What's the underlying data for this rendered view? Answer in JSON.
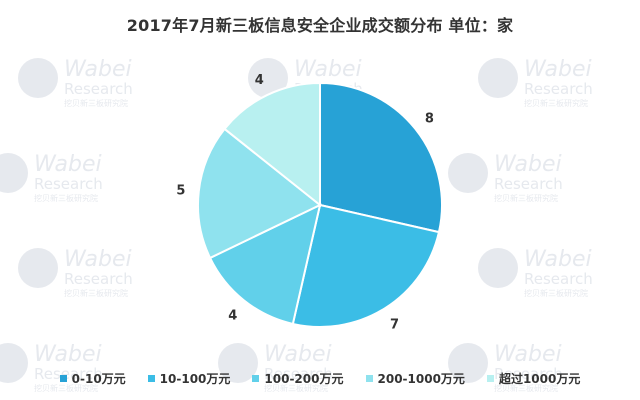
{
  "chart_data": {
    "type": "pie",
    "title": "2017年7月新三板信息安全企业成交额分布   单位：家",
    "categories": [
      "0-10万元",
      "10-100万元",
      "100-200万元",
      "200-1000万元",
      "超过1000万元"
    ],
    "values": [
      8,
      7,
      4,
      5,
      4
    ],
    "colors": [
      "#27a2d6",
      "#3bbde6",
      "#61d0ea",
      "#8fe2ee",
      "#b8f0f0"
    ],
    "legend_position": "bottom",
    "start_angle": "12 o'clock",
    "direction": "clockwise"
  },
  "watermark": {
    "brand": "Wabei",
    "sub": "Research",
    "tag": "挖贝新三板研究院"
  }
}
